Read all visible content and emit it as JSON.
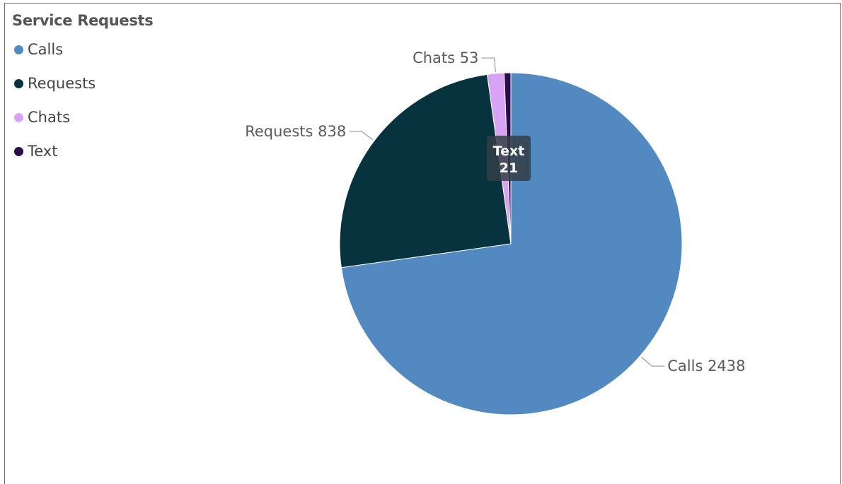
{
  "chart_data": {
    "type": "pie",
    "title": "Service Requests",
    "categories": [
      "Calls",
      "Requests",
      "Chats",
      "Text"
    ],
    "values": [
      2438,
      838,
      53,
      21
    ],
    "colors": [
      "#5189c0",
      "#06333d",
      "#d9a3f5",
      "#2a0c4a"
    ],
    "data_labels": [
      "Calls 2438",
      "Requests 838",
      "Chats 53",
      ""
    ],
    "legend": "top-left",
    "tooltip": {
      "label": "Text",
      "value": "21"
    }
  }
}
